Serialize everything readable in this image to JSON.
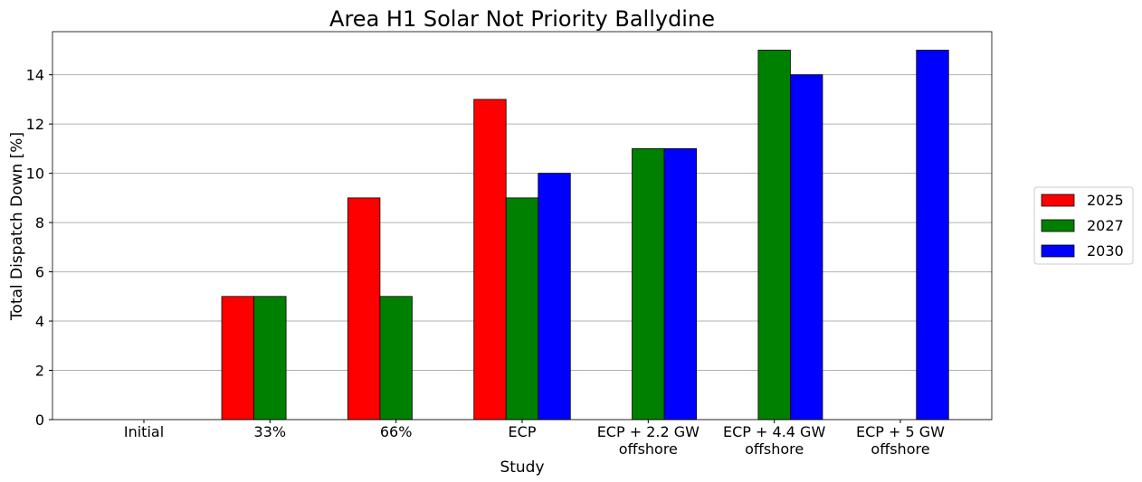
{
  "chart_data": {
    "type": "bar",
    "title": "Area H1 Solar Not Priority Ballydine",
    "x_label": "Study",
    "y_label": "Total Dispatch Down [%]",
    "categories": [
      "Initial",
      "33%",
      "66%",
      "ECP",
      "ECP + 2.2 GW\noffshore",
      "ECP + 4.4 GW\noffshore",
      "ECP + 5 GW\noffshore"
    ],
    "series": [
      {
        "name": "2025",
        "color": "#ff0000",
        "values": [
          0,
          5,
          9,
          13,
          0,
          0,
          0
        ]
      },
      {
        "name": "2027",
        "color": "#008000",
        "values": [
          0,
          5,
          5,
          9,
          11,
          15,
          0
        ]
      },
      {
        "name": "2030",
        "color": "#0000ff",
        "values": [
          0,
          0,
          0,
          10,
          11,
          14,
          15
        ]
      }
    ],
    "ylim": [
      0,
      15.75
    ],
    "yticks": [
      0,
      2,
      4,
      6,
      8,
      10,
      12,
      14
    ],
    "grid": true,
    "legend": "right"
  }
}
